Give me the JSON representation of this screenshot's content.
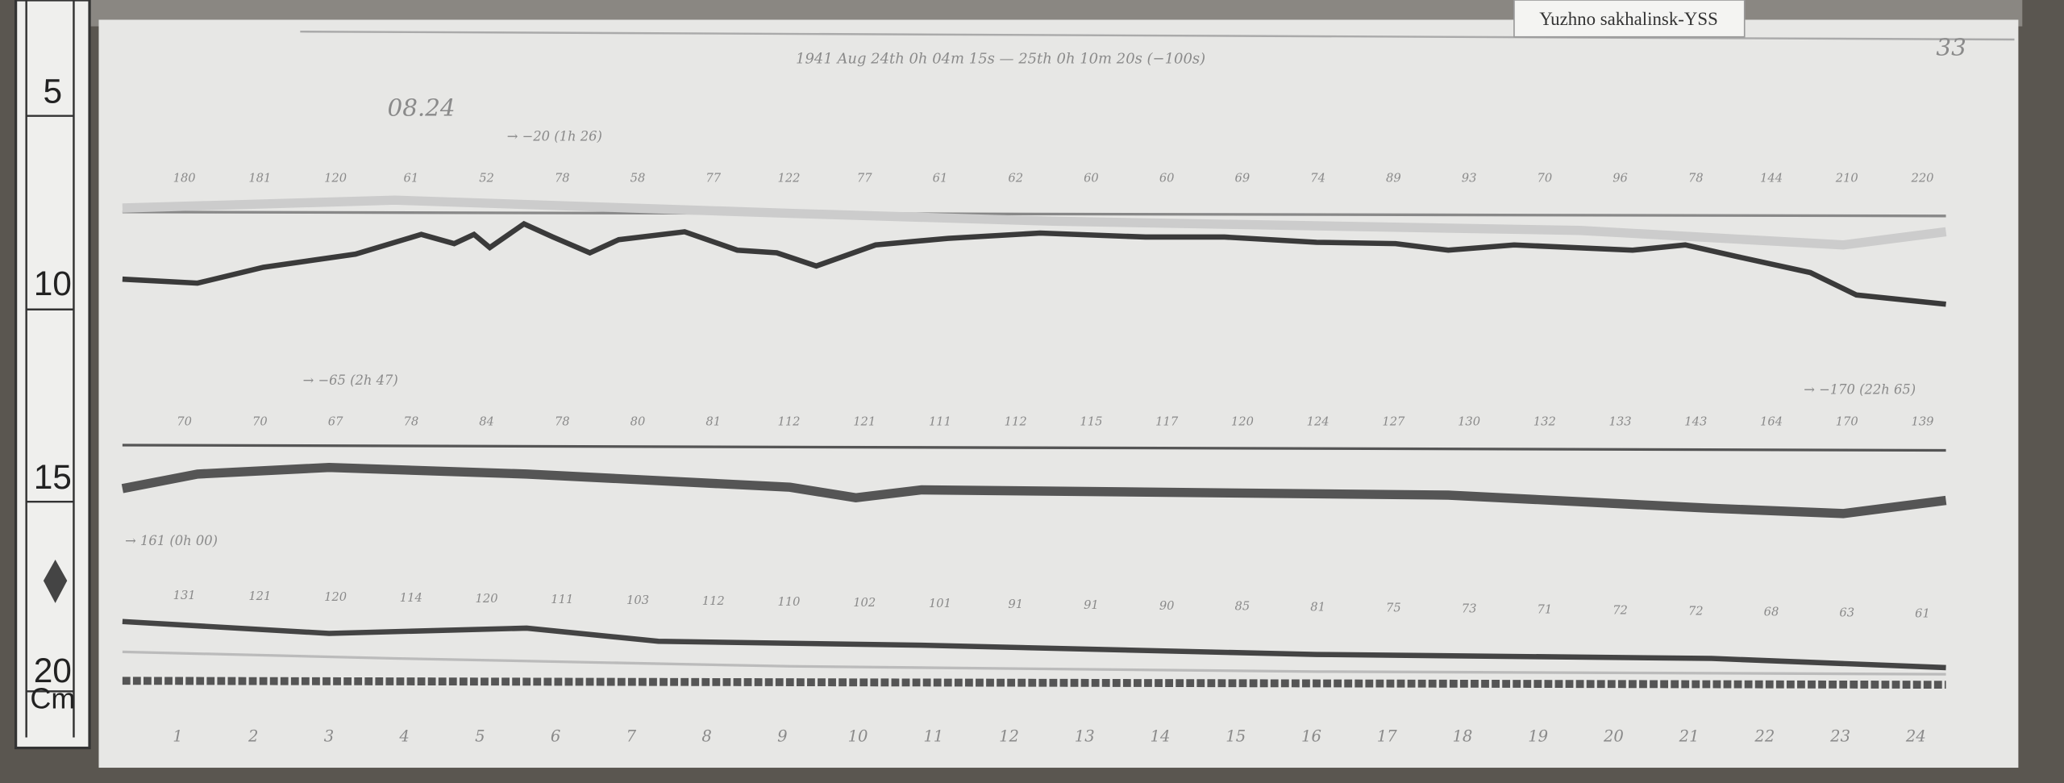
{
  "label": "Yuzhno sakhalinsk-YSS",
  "ruler": {
    "marks": [
      "5",
      "10",
      "15",
      "20"
    ],
    "unit": "Cm"
  },
  "header": "1941 Aug 24th 0h 04m 15s — 25th 0h 10m 20s (−100s)",
  "page_number": "33",
  "date": "08.24",
  "traces": [
    {
      "notes": [
        "→ −20 (1h 26)"
      ],
      "values": [
        "180",
        "181",
        "120",
        "61",
        "52",
        "78",
        "58",
        "77",
        "122",
        "77",
        "61",
        "62",
        "60",
        "60",
        "69",
        "74",
        "89",
        "93",
        "70",
        "96",
        "78",
        "144",
        "210",
        "220"
      ]
    },
    {
      "notes": [
        "→ −65 (2h 47)",
        "→ −170 (22h 65)"
      ],
      "values": [
        "70",
        "70",
        "67",
        "78",
        "84",
        "78",
        "80",
        "81",
        "112",
        "121",
        "111",
        "112",
        "115",
        "117",
        "120",
        "124",
        "127",
        "130",
        "132",
        "133",
        "143",
        "164",
        "170",
        "139"
      ]
    },
    {
      "notes": [
        "→ 161 (0h 00)"
      ],
      "values": [
        "131",
        "121",
        "120",
        "114",
        "120",
        "111",
        "103",
        "112",
        "110",
        "102",
        "101",
        "91",
        "91",
        "90",
        "85",
        "81",
        "75",
        "73",
        "71",
        "72",
        "72",
        "68",
        "63",
        "61"
      ]
    }
  ],
  "hours": [
    "1",
    "2",
    "3",
    "4",
    "5",
    "6",
    "7",
    "8",
    "9",
    "10",
    "11",
    "12",
    "13",
    "14",
    "15",
    "16",
    "17",
    "18",
    "19",
    "20",
    "21",
    "22",
    "23",
    "24"
  ]
}
